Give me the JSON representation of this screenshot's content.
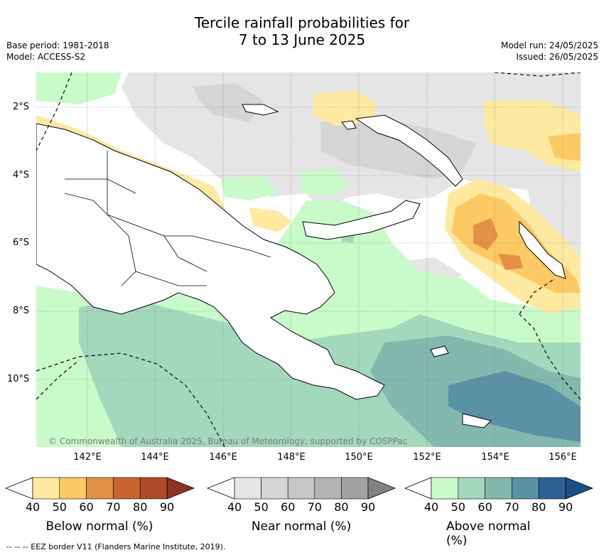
{
  "title": {
    "line1": "Tercile rainfall probabilities for",
    "line2": "7 to 13 June 2025"
  },
  "meta": {
    "base_period": "Base period: 1981-2018",
    "model": "Model: ACCESS-S2",
    "model_run": "Model run: 24/05/2025",
    "issued": "Issued: 26/05/2025"
  },
  "map": {
    "lat_labels": [
      "2°S",
      "4°S",
      "6°S",
      "8°S",
      "10°S"
    ],
    "lon_labels": [
      "142°E",
      "144°E",
      "146°E",
      "148°E",
      "150°E",
      "152°E",
      "154°E",
      "156°E"
    ],
    "credit": "© Commonwealth of Australia 2025, Bureau of Meteorology, supported by COSPPac"
  },
  "colorbars": [
    {
      "title": "Below normal (%)",
      "ticks": [
        "40",
        "50",
        "60",
        "70",
        "80",
        "90"
      ],
      "colors": [
        "#ffffff",
        "#fee9a0",
        "#fdc965",
        "#e29146",
        "#c9642f",
        "#ad4a27",
        "#8c3320"
      ]
    },
    {
      "title": "Near normal (%)",
      "ticks": [
        "40",
        "50",
        "60",
        "70",
        "80",
        "90"
      ],
      "colors": [
        "#ffffff",
        "#e5e5e5",
        "#d5d5d5",
        "#c6c6c6",
        "#b4b4b4",
        "#a1a1a1",
        "#828282"
      ]
    },
    {
      "title": "Above normal (%)",
      "ticks": [
        "40",
        "50",
        "60",
        "70",
        "80",
        "90"
      ],
      "colors": [
        "#ffffff",
        "#c9fac9",
        "#a4d8bd",
        "#83b8ae",
        "#5b91a5",
        "#2f6193",
        "#1b4f86"
      ]
    }
  ],
  "footer": "-- -- -- EEZ border V11 (Flanders Marine Institute, 2019)."
}
